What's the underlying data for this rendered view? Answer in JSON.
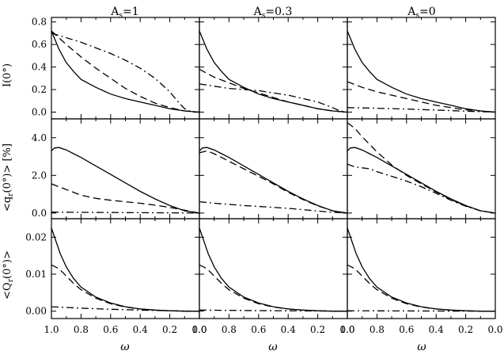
{
  "columns": [
    {
      "base": "A",
      "sub": "s",
      "rest": "=1"
    },
    {
      "base": "A",
      "sub": "s",
      "rest": "=0.3"
    },
    {
      "base": "A",
      "sub": "s",
      "rest": "=0"
    }
  ],
  "row_labels": [
    {
      "text": "I(0°)"
    },
    {
      "pre": "<q",
      "sub": "r",
      "post": "(0°)> [%]"
    },
    {
      "pre": "<Q",
      "sub": "r",
      "post": "(0°)>"
    }
  ],
  "xlabel": "ω",
  "line_color": "#000000",
  "chart_data": {
    "type": "line",
    "xlim": [
      1.0,
      0.0
    ],
    "xticks": [
      1.0,
      0.8,
      0.6,
      0.4,
      0.2,
      0.0
    ],
    "xtick_labels": [
      "1.0",
      "0.8",
      "0.6",
      "0.4",
      "0.2",
      "0.0"
    ],
    "rows": [
      {
        "ylim": [
          -0.06,
          0.84
        ],
        "yticks": [
          0.0,
          0.2,
          0.4,
          0.6,
          0.8
        ],
        "ytick_labels": [
          "0.0",
          "0.2",
          "0.4",
          "0.6",
          "0.8"
        ]
      },
      {
        "ylim": [
          -0.3,
          5.0
        ],
        "yticks": [
          0.0,
          2.0,
          4.0
        ],
        "ytick_labels": [
          "0.0",
          "2.0",
          "4.0"
        ]
      },
      {
        "ylim": [
          -0.002,
          0.025
        ],
        "yticks": [
          0.0,
          0.01,
          0.02
        ],
        "ytick_labels": [
          "0.00",
          "0.01",
          "0.02"
        ]
      }
    ],
    "panels": [
      [
        {
          "series": [
            {
              "style": "solid",
              "x": [
                1.0,
                0.95,
                0.9,
                0.85,
                0.8,
                0.7,
                0.6,
                0.5,
                0.4,
                0.3,
                0.2,
                0.1,
                0.0
              ],
              "y": [
                0.72,
                0.56,
                0.44,
                0.36,
                0.29,
                0.22,
                0.16,
                0.12,
                0.09,
                0.06,
                0.03,
                0.01,
                0.0
              ]
            },
            {
              "style": "dash",
              "x": [
                1.0,
                0.9,
                0.8,
                0.7,
                0.6,
                0.5,
                0.4,
                0.3,
                0.2,
                0.1,
                0.0
              ],
              "y": [
                0.72,
                0.6,
                0.49,
                0.39,
                0.3,
                0.21,
                0.14,
                0.08,
                0.04,
                0.01,
                0.0
              ]
            },
            {
              "style": "dashdot",
              "x": [
                1.0,
                0.9,
                0.8,
                0.7,
                0.6,
                0.5,
                0.4,
                0.3,
                0.2,
                0.15,
                0.1,
                0.05,
                0.0
              ],
              "y": [
                0.7,
                0.66,
                0.62,
                0.57,
                0.52,
                0.46,
                0.39,
                0.3,
                0.18,
                0.1,
                0.03,
                0.0,
                0.0
              ]
            }
          ]
        },
        {
          "series": [
            {
              "style": "solid",
              "x": [
                1.0,
                0.95,
                0.9,
                0.85,
                0.8,
                0.7,
                0.6,
                0.5,
                0.4,
                0.3,
                0.2,
                0.1,
                0.0
              ],
              "y": [
                0.72,
                0.56,
                0.44,
                0.36,
                0.29,
                0.22,
                0.16,
                0.12,
                0.09,
                0.06,
                0.03,
                0.01,
                0.0
              ]
            },
            {
              "style": "dash",
              "x": [
                1.0,
                0.9,
                0.8,
                0.7,
                0.6,
                0.5,
                0.4,
                0.3,
                0.2,
                0.1,
                0.0
              ],
              "y": [
                0.38,
                0.31,
                0.26,
                0.21,
                0.17,
                0.13,
                0.09,
                0.06,
                0.03,
                0.01,
                0.0
              ]
            },
            {
              "style": "dashdot",
              "x": [
                1.0,
                0.9,
                0.8,
                0.7,
                0.6,
                0.5,
                0.4,
                0.3,
                0.2,
                0.1,
                0.05,
                0.0
              ],
              "y": [
                0.25,
                0.23,
                0.21,
                0.2,
                0.19,
                0.17,
                0.15,
                0.12,
                0.09,
                0.04,
                0.01,
                0.0
              ]
            }
          ]
        },
        {
          "series": [
            {
              "style": "solid",
              "x": [
                1.0,
                0.95,
                0.9,
                0.85,
                0.8,
                0.7,
                0.6,
                0.5,
                0.4,
                0.3,
                0.2,
                0.1,
                0.0
              ],
              "y": [
                0.72,
                0.56,
                0.44,
                0.36,
                0.29,
                0.22,
                0.16,
                0.12,
                0.09,
                0.06,
                0.03,
                0.01,
                0.0
              ]
            },
            {
              "style": "dash",
              "x": [
                1.0,
                0.9,
                0.8,
                0.7,
                0.6,
                0.5,
                0.4,
                0.3,
                0.2,
                0.1,
                0.0
              ],
              "y": [
                0.27,
                0.22,
                0.18,
                0.15,
                0.12,
                0.09,
                0.06,
                0.04,
                0.02,
                0.01,
                0.0
              ]
            },
            {
              "style": "dashdot",
              "x": [
                1.0,
                0.8,
                0.6,
                0.4,
                0.2,
                0.0
              ],
              "y": [
                0.04,
                0.034,
                0.027,
                0.018,
                0.008,
                0.0
              ]
            }
          ]
        }
      ],
      [
        {
          "series": [
            {
              "style": "solid",
              "x": [
                1.0,
                0.98,
                0.95,
                0.9,
                0.85,
                0.8,
                0.7,
                0.6,
                0.5,
                0.4,
                0.3,
                0.2,
                0.1,
                0.0
              ],
              "y": [
                3.3,
                3.45,
                3.48,
                3.35,
                3.15,
                2.95,
                2.5,
                2.05,
                1.6,
                1.15,
                0.75,
                0.4,
                0.12,
                0.0
              ]
            },
            {
              "style": "dash",
              "x": [
                1.0,
                0.9,
                0.8,
                0.7,
                0.6,
                0.5,
                0.4,
                0.3,
                0.2,
                0.1,
                0.0
              ],
              "y": [
                1.55,
                1.25,
                0.95,
                0.78,
                0.68,
                0.6,
                0.52,
                0.42,
                0.3,
                0.15,
                0.0
              ]
            },
            {
              "style": "dashdot",
              "x": [
                1.0,
                0.8,
                0.6,
                0.4,
                0.2,
                0.0
              ],
              "y": [
                0.05,
                0.04,
                0.03,
                0.02,
                0.01,
                0.0
              ]
            }
          ]
        },
        {
          "series": [
            {
              "style": "solid",
              "x": [
                1.0,
                0.98,
                0.95,
                0.9,
                0.85,
                0.8,
                0.7,
                0.6,
                0.5,
                0.4,
                0.3,
                0.2,
                0.1,
                0.0
              ],
              "y": [
                3.3,
                3.45,
                3.48,
                3.35,
                3.15,
                2.95,
                2.5,
                2.05,
                1.6,
                1.15,
                0.75,
                0.4,
                0.12,
                0.0
              ]
            },
            {
              "style": "dash",
              "x": [
                1.0,
                0.95,
                0.9,
                0.85,
                0.8,
                0.7,
                0.6,
                0.5,
                0.4,
                0.3,
                0.2,
                0.1,
                0.0
              ],
              "y": [
                3.2,
                3.3,
                3.15,
                2.95,
                2.75,
                2.35,
                1.95,
                1.55,
                1.1,
                0.72,
                0.38,
                0.12,
                0.0
              ]
            },
            {
              "style": "dashdot",
              "x": [
                1.0,
                0.9,
                0.8,
                0.7,
                0.6,
                0.5,
                0.4,
                0.3,
                0.2,
                0.1,
                0.0
              ],
              "y": [
                0.6,
                0.52,
                0.46,
                0.4,
                0.35,
                0.3,
                0.25,
                0.18,
                0.11,
                0.04,
                0.0
              ]
            }
          ]
        },
        {
          "series": [
            {
              "style": "solid",
              "x": [
                1.0,
                0.98,
                0.95,
                0.9,
                0.85,
                0.8,
                0.7,
                0.6,
                0.5,
                0.4,
                0.3,
                0.2,
                0.1,
                0.0
              ],
              "y": [
                3.3,
                3.45,
                3.48,
                3.35,
                3.15,
                2.95,
                2.5,
                2.05,
                1.6,
                1.15,
                0.75,
                0.4,
                0.12,
                0.0
              ]
            },
            {
              "style": "dash",
              "x": [
                1.0,
                0.95,
                0.9,
                0.85,
                0.8,
                0.7,
                0.6,
                0.5,
                0.4,
                0.3,
                0.2,
                0.1,
                0.0
              ],
              "y": [
                4.8,
                4.5,
                4.05,
                3.65,
                3.25,
                2.55,
                2.0,
                1.55,
                1.12,
                0.72,
                0.38,
                0.12,
                0.0
              ]
            },
            {
              "style": "dashdot",
              "x": [
                1.0,
                0.95,
                0.9,
                0.85,
                0.8,
                0.7,
                0.6,
                0.5,
                0.4,
                0.3,
                0.2,
                0.1,
                0.0
              ],
              "y": [
                2.6,
                2.45,
                2.4,
                2.35,
                2.2,
                1.95,
                1.7,
                1.4,
                1.05,
                0.68,
                0.36,
                0.12,
                0.0
              ]
            }
          ]
        }
      ],
      [
        {
          "series": [
            {
              "style": "solid",
              "x": [
                1.0,
                0.97,
                0.94,
                0.9,
                0.85,
                0.8,
                0.7,
                0.6,
                0.5,
                0.4,
                0.3,
                0.2,
                0.1,
                0.0
              ],
              "y": [
                0.0225,
                0.019,
                0.0155,
                0.012,
                0.0088,
                0.0065,
                0.0038,
                0.0022,
                0.0012,
                0.0006,
                0.0003,
                0.0001,
                0.0,
                0.0
              ]
            },
            {
              "style": "dash",
              "x": [
                1.0,
                0.95,
                0.9,
                0.85,
                0.8,
                0.7,
                0.6,
                0.5,
                0.4,
                0.3,
                0.2,
                0.1,
                0.0
              ],
              "y": [
                0.0125,
                0.0115,
                0.0095,
                0.0075,
                0.0058,
                0.0035,
                0.002,
                0.0011,
                0.0006,
                0.0003,
                0.0001,
                0.0,
                0.0
              ]
            },
            {
              "style": "dashdot",
              "x": [
                1.0,
                0.8,
                0.6,
                0.4,
                0.2,
                0.0
              ],
              "y": [
                0.0012,
                0.0008,
                0.0005,
                0.0003,
                0.0001,
                0.0
              ]
            }
          ]
        },
        {
          "series": [
            {
              "style": "solid",
              "x": [
                1.0,
                0.97,
                0.94,
                0.9,
                0.85,
                0.8,
                0.7,
                0.6,
                0.5,
                0.4,
                0.3,
                0.2,
                0.1,
                0.0
              ],
              "y": [
                0.0225,
                0.019,
                0.0155,
                0.012,
                0.0088,
                0.0065,
                0.0038,
                0.0022,
                0.0012,
                0.0006,
                0.0003,
                0.0001,
                0.0,
                0.0
              ]
            },
            {
              "style": "dash",
              "x": [
                1.0,
                0.95,
                0.9,
                0.85,
                0.8,
                0.7,
                0.6,
                0.5,
                0.4,
                0.3,
                0.2,
                0.1,
                0.0
              ],
              "y": [
                0.0125,
                0.0115,
                0.0095,
                0.0075,
                0.0058,
                0.0035,
                0.002,
                0.0011,
                0.0006,
                0.0003,
                0.0001,
                0.0,
                0.0
              ]
            },
            {
              "style": "dashdot",
              "x": [
                1.0,
                0.8,
                0.6,
                0.4,
                0.2,
                0.0
              ],
              "y": [
                0.0003,
                0.0002,
                0.00015,
                0.0001,
                5e-05,
                0.0
              ]
            }
          ]
        },
        {
          "series": [
            {
              "style": "solid",
              "x": [
                1.0,
                0.97,
                0.94,
                0.9,
                0.85,
                0.8,
                0.7,
                0.6,
                0.5,
                0.4,
                0.3,
                0.2,
                0.1,
                0.0
              ],
              "y": [
                0.0225,
                0.019,
                0.0155,
                0.012,
                0.0088,
                0.0065,
                0.0038,
                0.0022,
                0.0012,
                0.0006,
                0.0003,
                0.0001,
                0.0,
                0.0
              ]
            },
            {
              "style": "dash",
              "x": [
                1.0,
                0.95,
                0.9,
                0.85,
                0.8,
                0.7,
                0.6,
                0.5,
                0.4,
                0.3,
                0.2,
                0.1,
                0.0
              ],
              "y": [
                0.0125,
                0.0115,
                0.0095,
                0.0075,
                0.0058,
                0.0035,
                0.002,
                0.0011,
                0.0006,
                0.0003,
                0.0001,
                0.0,
                0.0
              ]
            },
            {
              "style": "dashdot",
              "x": [
                1.0,
                0.8,
                0.6,
                0.4,
                0.2,
                0.0
              ],
              "y": [
                0.0001,
                8e-05,
                5e-05,
                3e-05,
                1e-05,
                0.0
              ]
            }
          ]
        }
      ]
    ]
  }
}
